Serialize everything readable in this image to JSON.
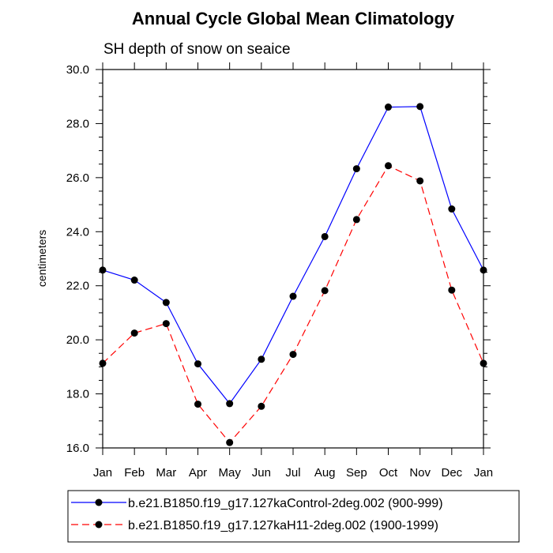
{
  "chart_data": {
    "type": "line",
    "title": "Annual Cycle Global Mean Climatology",
    "subtitle": "SH depth of snow on seaice",
    "xlabel": "",
    "ylabel": "centimeters",
    "categories": [
      "Jan",
      "Feb",
      "Mar",
      "Apr",
      "May",
      "Jun",
      "Jul",
      "Aug",
      "Sep",
      "Oct",
      "Nov",
      "Dec",
      "Jan"
    ],
    "ylim": [
      16.0,
      30.0
    ],
    "yticks": [
      16.0,
      18.0,
      20.0,
      22.0,
      24.0,
      26.0,
      28.0,
      30.0
    ],
    "ytick_labels": [
      "16.0",
      "18.0",
      "20.0",
      "22.0",
      "24.0",
      "26.0",
      "28.0",
      "30.0"
    ],
    "y_minor_step": 0.5,
    "legend_position": "bottom",
    "series": [
      {
        "name": "b.e21.B1850.f19_g17.127kaControl-2deg.002 (900-999)",
        "color": "#0000ff",
        "line_style": "solid",
        "values": [
          22.58,
          22.21,
          21.38,
          19.11,
          17.64,
          19.28,
          21.61,
          23.82,
          26.33,
          28.61,
          28.63,
          24.84,
          22.58
        ]
      },
      {
        "name": "b.e21.B1850.f19_g17.127kaH11-2deg.002 (1900-1999)",
        "color": "#ff0000",
        "line_style": "dashed",
        "values": [
          19.13,
          20.25,
          20.6,
          17.62,
          16.2,
          17.54,
          19.46,
          21.82,
          24.45,
          26.44,
          25.88,
          21.84,
          19.13
        ]
      }
    ]
  }
}
